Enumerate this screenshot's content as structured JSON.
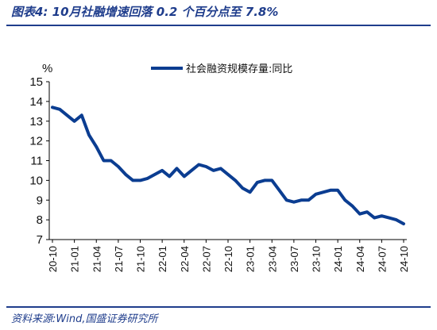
{
  "header": {
    "title": "图表4:  10月社融增速回落 0.2 个百分点至 7.8%"
  },
  "footer": {
    "source": "资料来源:Wind,国盛证券研究所"
  },
  "colors": {
    "line": "#0b3d91",
    "accent": "#1f3d8c"
  },
  "chart_data": {
    "type": "line",
    "ylabel": "%",
    "ylim": [
      7,
      15
    ],
    "yticks": [
      "7",
      "8",
      "9",
      "10",
      "11",
      "12",
      "13",
      "14",
      "15"
    ],
    "xlabels": [
      "20-10",
      "21-01",
      "21-04",
      "21-07",
      "21-10",
      "22-01",
      "22-04",
      "22-07",
      "22-10",
      "23-01",
      "23-04",
      "23-07",
      "23-10",
      "24-01",
      "24-04",
      "24-07",
      "24-10"
    ],
    "legend": "社会融资规模存量:同比",
    "legend_position": "top-right",
    "grid": false,
    "x": [
      "20-10",
      "20-11",
      "20-12",
      "21-01",
      "21-02",
      "21-03",
      "21-04",
      "21-05",
      "21-06",
      "21-07",
      "21-08",
      "21-09",
      "21-10",
      "21-11",
      "21-12",
      "22-01",
      "22-02",
      "22-03",
      "22-04",
      "22-05",
      "22-06",
      "22-07",
      "22-08",
      "22-09",
      "22-10",
      "22-11",
      "22-12",
      "23-01",
      "23-02",
      "23-03",
      "23-04",
      "23-05",
      "23-06",
      "23-07",
      "23-08",
      "23-09",
      "23-10",
      "23-11",
      "23-12",
      "24-01",
      "24-02",
      "24-03",
      "24-04",
      "24-05",
      "24-06",
      "24-07",
      "24-08",
      "24-09",
      "24-10"
    ],
    "series": [
      {
        "name": "社会融资规模存量:同比",
        "values": [
          13.7,
          13.6,
          13.3,
          13.0,
          13.3,
          12.3,
          11.7,
          11.0,
          11.0,
          10.7,
          10.3,
          10.0,
          10.0,
          10.1,
          10.3,
          10.5,
          10.2,
          10.6,
          10.2,
          10.5,
          10.8,
          10.7,
          10.5,
          10.6,
          10.3,
          10.0,
          9.6,
          9.4,
          9.9,
          10.0,
          10.0,
          9.5,
          9.0,
          8.9,
          9.0,
          9.0,
          9.3,
          9.4,
          9.5,
          9.5,
          9.0,
          8.7,
          8.3,
          8.4,
          8.1,
          8.2,
          8.1,
          8.0,
          7.8
        ]
      }
    ]
  }
}
